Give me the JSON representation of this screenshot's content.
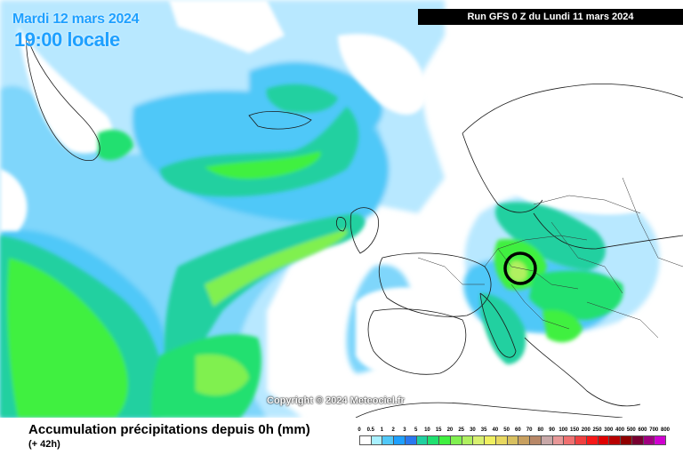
{
  "header": {
    "date": "Mardi 12 mars 2024",
    "time": "19:00 locale",
    "run": "Run GFS 0 Z du Lundi 11 mars 2024"
  },
  "copyright": "Copyright © 2024 Meteociel.fr",
  "footer": {
    "title": "Accumulation précipitations depuis 0h (mm)",
    "subtitle": "(+ 42h)"
  },
  "legend": {
    "ticks": [
      "0",
      "0.5",
      "1",
      "2",
      "3",
      "5",
      "10",
      "15",
      "20",
      "25",
      "30",
      "35",
      "40",
      "50",
      "60",
      "70",
      "80",
      "90",
      "100",
      "150",
      "200",
      "250",
      "300",
      "400",
      "500",
      "600",
      "700",
      "800"
    ],
    "colors": [
      "#ffffff",
      "#a8f0ff",
      "#50c8f8",
      "#1ea0ff",
      "#2a78f0",
      "#20d0a0",
      "#20e070",
      "#40f040",
      "#80f050",
      "#b0f060",
      "#d8f070",
      "#f0f060",
      "#e8d860",
      "#d8c060",
      "#c8a060",
      "#b88868",
      "#c8a8a8",
      "#e89898",
      "#f07070",
      "#f04040",
      "#f81818",
      "#e00000",
      "#b80000",
      "#900000",
      "#780030",
      "#a00080",
      "#d000d0"
    ]
  },
  "colors": {
    "land": "#ffffff",
    "ocean_light": "#b8e8ff",
    "ocean_mid": "#50c8f8",
    "precip_blue": "#1ea0ff",
    "precip_green": "#20e070",
    "precip_lime": "#80f050",
    "marker_ring": "#000000"
  }
}
